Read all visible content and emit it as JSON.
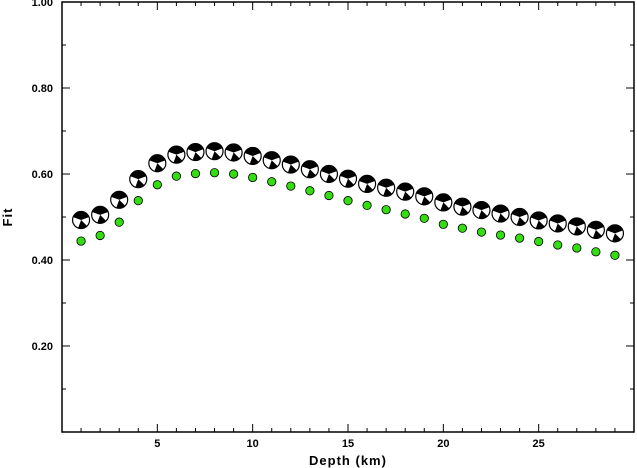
{
  "chart_data": {
    "type": "scatter",
    "title": "",
    "xlabel": "Depth (km)",
    "ylabel": "Fit",
    "xlim": [
      0,
      30
    ],
    "ylim": [
      0,
      1
    ],
    "x_ticks": [
      5,
      10,
      15,
      20,
      25
    ],
    "y_ticks": [
      0.2,
      0.4,
      0.6,
      0.8,
      1.0
    ],
    "y_tick_labels": [
      "0.20",
      "0.40",
      "0.60",
      "0.80",
      "1.00"
    ],
    "grid": false,
    "series": [
      {
        "marker": "focal-mechanism",
        "color": "#000000",
        "x": [
          1,
          2,
          3,
          4,
          5,
          6,
          7,
          8,
          9,
          10,
          11,
          12,
          13,
          14,
          15,
          16,
          17,
          18,
          19,
          20,
          21,
          22,
          23,
          24,
          25,
          26,
          27,
          28,
          29
        ],
        "y": [
          0.493,
          0.505,
          0.54,
          0.588,
          0.625,
          0.645,
          0.651,
          0.653,
          0.65,
          0.642,
          0.632,
          0.622,
          0.611,
          0.6,
          0.589,
          0.577,
          0.568,
          0.559,
          0.548,
          0.534,
          0.524,
          0.516,
          0.508,
          0.5,
          0.492,
          0.485,
          0.478,
          0.47,
          0.462
        ]
      },
      {
        "marker": "circle",
        "color": "#33dd11",
        "x": [
          1,
          2,
          3,
          4,
          5,
          6,
          7,
          8,
          9,
          10,
          11,
          12,
          13,
          14,
          15,
          16,
          17,
          18,
          19,
          20,
          21,
          22,
          23,
          24,
          25,
          26,
          27,
          28,
          29
        ],
        "y": [
          0.444,
          0.457,
          0.488,
          0.538,
          0.575,
          0.595,
          0.601,
          0.603,
          0.6,
          0.592,
          0.582,
          0.572,
          0.561,
          0.55,
          0.538,
          0.527,
          0.517,
          0.507,
          0.497,
          0.483,
          0.474,
          0.465,
          0.458,
          0.451,
          0.443,
          0.435,
          0.428,
          0.419,
          0.411
        ]
      }
    ]
  }
}
